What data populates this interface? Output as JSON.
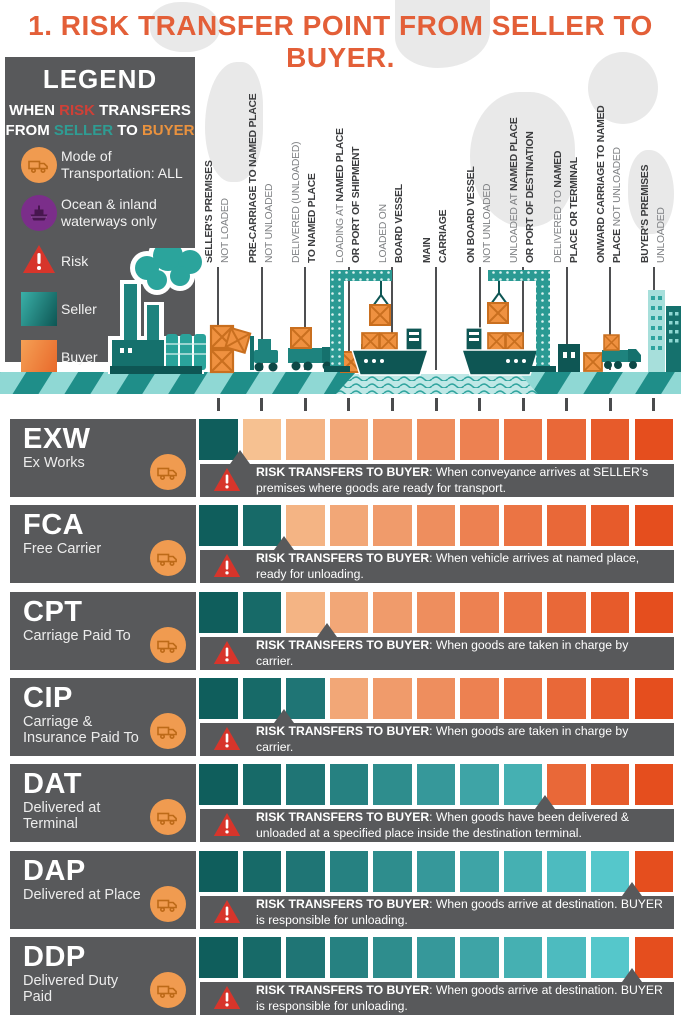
{
  "title": "1. RISK TRANSFER POINT FROM SELLER TO BUYER.",
  "legend": {
    "heading": "LEGEND",
    "subtitle": [
      [
        {
          "t": "WHEN ",
          "c": "#ffffff"
        },
        {
          "t": "RISK",
          "c": "#cf4037"
        },
        {
          "t": " TRANSFERS",
          "c": "#ffffff"
        }
      ],
      [
        {
          "t": "FROM ",
          "c": "#ffffff"
        },
        {
          "t": "SELLER",
          "c": "#2f9c93"
        },
        {
          "t": " TO ",
          "c": "#ffffff"
        },
        {
          "t": "BUYER",
          "c": "#ea923e"
        }
      ]
    ],
    "items": [
      {
        "icon": "transport-all-icon",
        "label": "Mode of Transportation: ALL"
      },
      {
        "icon": "ocean-waterways-icon",
        "label": "Ocean & inland waterways only"
      },
      {
        "icon": "risk-icon",
        "label": "Risk"
      },
      {
        "icon": "seller-swatch",
        "label": "Seller"
      },
      {
        "icon": "buyer-swatch",
        "label": "Buyer"
      }
    ]
  },
  "columns": [
    {
      "lines": [
        [
          {
            "t": "SELLER'S PREMISES",
            "b": true
          }
        ],
        [
          {
            "t": "NOT LOADED",
            "b": false
          }
        ]
      ]
    },
    {
      "lines": [
        [
          {
            "t": "PRE-CARRIAGE TO NAMED PLACE",
            "b": true
          }
        ],
        [
          {
            "t": "NOT UNLOADED",
            "b": false
          }
        ]
      ]
    },
    {
      "lines": [
        [
          {
            "t": "DELIVERED (UNLOADED)",
            "b": false
          }
        ],
        [
          {
            "t": "TO NAMED PLACE",
            "b": true
          }
        ]
      ]
    },
    {
      "lines": [
        [
          {
            "t": "LOADING AT ",
            "b": false
          },
          {
            "t": "NAMED PLACE",
            "b": true
          }
        ],
        [
          {
            "t": "OR PORT OF SHIPMENT",
            "b": true
          }
        ]
      ]
    },
    {
      "lines": [
        [
          {
            "t": "LOADED ON",
            "b": false
          }
        ],
        [
          {
            "t": "BOARD VESSEL",
            "b": true
          }
        ]
      ]
    },
    {
      "lines": [
        [
          {
            "t": "MAIN",
            "b": true
          }
        ],
        [
          {
            "t": "CARRIAGE",
            "b": true
          }
        ]
      ]
    },
    {
      "lines": [
        [
          {
            "t": "ON BOARD VESSEL",
            "b": true
          }
        ],
        [
          {
            "t": "NOT UNLOADED",
            "b": false
          }
        ]
      ]
    },
    {
      "lines": [
        [
          {
            "t": "UNLOADED AT ",
            "b": false
          },
          {
            "t": "NAMED PLACE",
            "b": true
          }
        ],
        [
          {
            "t": "OR PORT OF DESTINATION",
            "b": true
          }
        ]
      ]
    },
    {
      "lines": [
        [
          {
            "t": "DELIVERED TO ",
            "b": false
          },
          {
            "t": "NAMED",
            "b": true
          }
        ],
        [
          {
            "t": "PLACE OR TERMINAL",
            "b": true
          }
        ]
      ]
    },
    {
      "lines": [
        [
          {
            "t": "ONWARD CARRIAGE TO NAMED",
            "b": true
          }
        ],
        [
          {
            "t": "PLACE",
            "b": true
          },
          {
            "t": " NOT UNLOADED",
            "b": false
          }
        ]
      ]
    },
    {
      "lines": [
        [
          {
            "t": "BUYER'S PREMISES",
            "b": true
          }
        ],
        [
          {
            "t": "UNLOADED",
            "b": false
          }
        ]
      ]
    }
  ],
  "rows": [
    {
      "code": "EXW",
      "name": "Ex Works",
      "seller_cells": 1,
      "pointer_after": 1,
      "note_bold": "RISK TRANSFERS TO BUYER",
      "note_rest": ": When conveyance arrives at SELLER's premises where goods are ready for transport."
    },
    {
      "code": "FCA",
      "name": "Free Carrier",
      "seller_cells": 2,
      "pointer_after": 2,
      "note_bold": "RISK TRANSFERS TO BUYER",
      "note_rest": ": When vehicle arrives at named place, ready for unloading."
    },
    {
      "code": "CPT",
      "name": "Carriage Paid To",
      "seller_cells": 2,
      "pointer_after": 3,
      "note_bold": "RISK TRANSFERS TO BUYER",
      "note_rest": ": When goods are taken in charge by carrier."
    },
    {
      "code": "CIP",
      "name": "Carriage & Insurance Paid To",
      "seller_cells": 3,
      "pointer_after": 2,
      "note_bold": "RISK TRANSFERS TO BUYER",
      "note_rest": ": When goods are taken in charge by carrier."
    },
    {
      "code": "DAT",
      "name": "Delivered at Terminal",
      "seller_cells": 8,
      "pointer_after": 8,
      "note_bold": "RISK TRANSFERS TO BUYER",
      "note_rest": ": When goods have been delivered & unloaded at a specified place inside the destination terminal."
    },
    {
      "code": "DAP",
      "name": "Delivered at Place",
      "seller_cells": 10,
      "pointer_after": 10,
      "note_bold": "RISK TRANSFERS TO BUYER",
      "note_rest": ": When goods arrive at destination. BUYER is responsible for unloading."
    },
    {
      "code": "DDP",
      "name": "Delivered Duty Paid",
      "seller_cells": 10,
      "pointer_after": 10,
      "note_bold": "RISK TRANSFERS TO BUYER",
      "note_rest": ": When goods arrive at destination. BUYER is responsible for unloading."
    }
  ],
  "cells_total": 11,
  "colors": {
    "title": "#e35f38",
    "panel": "#58595b",
    "seller_dark": "#0f5e5c",
    "seller_light": "#55c7cb",
    "buyer_light": "#f6c191",
    "buyer_dark": "#e54e1e",
    "risk_red": "#d7352b",
    "transport_orange": "#f09b50",
    "ocean_purple": "#7b2e8a",
    "label_bold": "#3b3c3e",
    "label_regular": "#7e8083"
  }
}
